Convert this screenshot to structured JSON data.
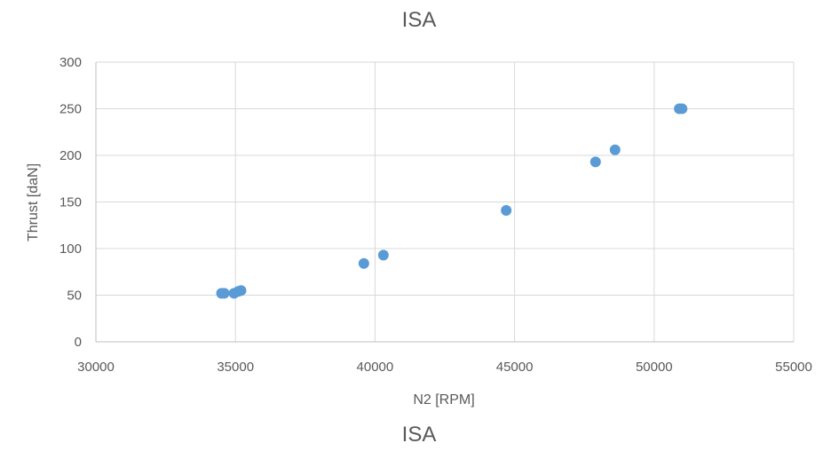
{
  "chart_data": {
    "type": "scatter",
    "title": "ISA",
    "footer_title": "ISA",
    "xlabel": "N2 [RPM]",
    "ylabel": "Thrust [daN]",
    "xlim": [
      30000,
      55000
    ],
    "ylim": [
      0,
      300
    ],
    "x_ticks": [
      30000,
      35000,
      40000,
      45000,
      50000,
      55000
    ],
    "y_ticks": [
      0,
      50,
      100,
      150,
      200,
      250,
      300
    ],
    "grid": true,
    "legend": "none",
    "series": [
      {
        "color": "#5b9bd5",
        "points": [
          {
            "x": 34500,
            "y": 52
          },
          {
            "x": 34600,
            "y": 52
          },
          {
            "x": 34950,
            "y": 52
          },
          {
            "x": 35100,
            "y": 54
          },
          {
            "x": 35200,
            "y": 55
          },
          {
            "x": 39600,
            "y": 84
          },
          {
            "x": 40300,
            "y": 93
          },
          {
            "x": 44700,
            "y": 141
          },
          {
            "x": 47900,
            "y": 193
          },
          {
            "x": 48600,
            "y": 206
          },
          {
            "x": 50900,
            "y": 250
          },
          {
            "x": 51000,
            "y": 250
          }
        ]
      }
    ]
  }
}
